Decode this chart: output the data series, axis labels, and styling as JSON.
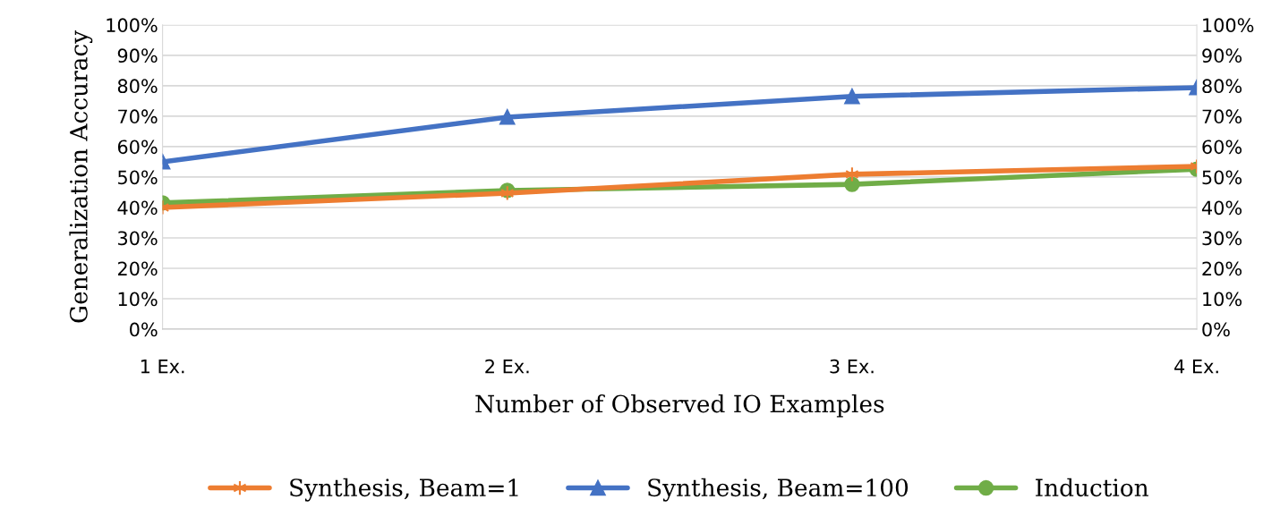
{
  "chart_data": {
    "type": "line",
    "xlabel": "Number of Observed IO Examples",
    "ylabel": "Generalization Accuracy",
    "categories": [
      "1 Ex.",
      "2 Ex.",
      "3 Ex.",
      "4 Ex."
    ],
    "series": [
      {
        "name": "Synthesis, Beam=1",
        "color": "#ed7d31",
        "marker": "cross",
        "values": [
          40,
          44.7,
          50.9,
          53.5
        ]
      },
      {
        "name": "Synthesis, Beam=100",
        "color": "#4472c4",
        "marker": "triangle",
        "values": [
          55,
          69.7,
          76.5,
          79.4
        ]
      },
      {
        "name": "Induction",
        "color": "#70ad47",
        "marker": "circle",
        "values": [
          41.5,
          45.6,
          47.6,
          52.6
        ]
      }
    ],
    "ylim": [
      0,
      100
    ],
    "yticks": [
      {
        "value": 0,
        "label": "0%"
      },
      {
        "value": 10,
        "label": "10%"
      },
      {
        "value": 20,
        "label": "20%"
      },
      {
        "value": 30,
        "label": "30%"
      },
      {
        "value": 40,
        "label": "40%"
      },
      {
        "value": 50,
        "label": "50%"
      },
      {
        "value": 60,
        "label": "60%"
      },
      {
        "value": 70,
        "label": "70%"
      },
      {
        "value": 80,
        "label": "80%"
      },
      {
        "value": 90,
        "label": "90%"
      },
      {
        "value": 100,
        "label": "100%"
      }
    ],
    "y2lim": [
      0,
      100
    ],
    "y2ticks": [
      {
        "value": 0,
        "label": "0%"
      },
      {
        "value": 10,
        "label": "10%"
      },
      {
        "value": 20,
        "label": "20%"
      },
      {
        "value": 30,
        "label": "30%"
      },
      {
        "value": 40,
        "label": "40%"
      },
      {
        "value": 50,
        "label": "50%"
      },
      {
        "value": 60,
        "label": "60%"
      },
      {
        "value": 70,
        "label": "70%"
      },
      {
        "value": 80,
        "label": "80%"
      },
      {
        "value": 90,
        "label": "90%"
      },
      {
        "value": 100,
        "label": "100%"
      }
    ],
    "grid": "y",
    "legend": "bottom",
    "line_style": "solid"
  }
}
